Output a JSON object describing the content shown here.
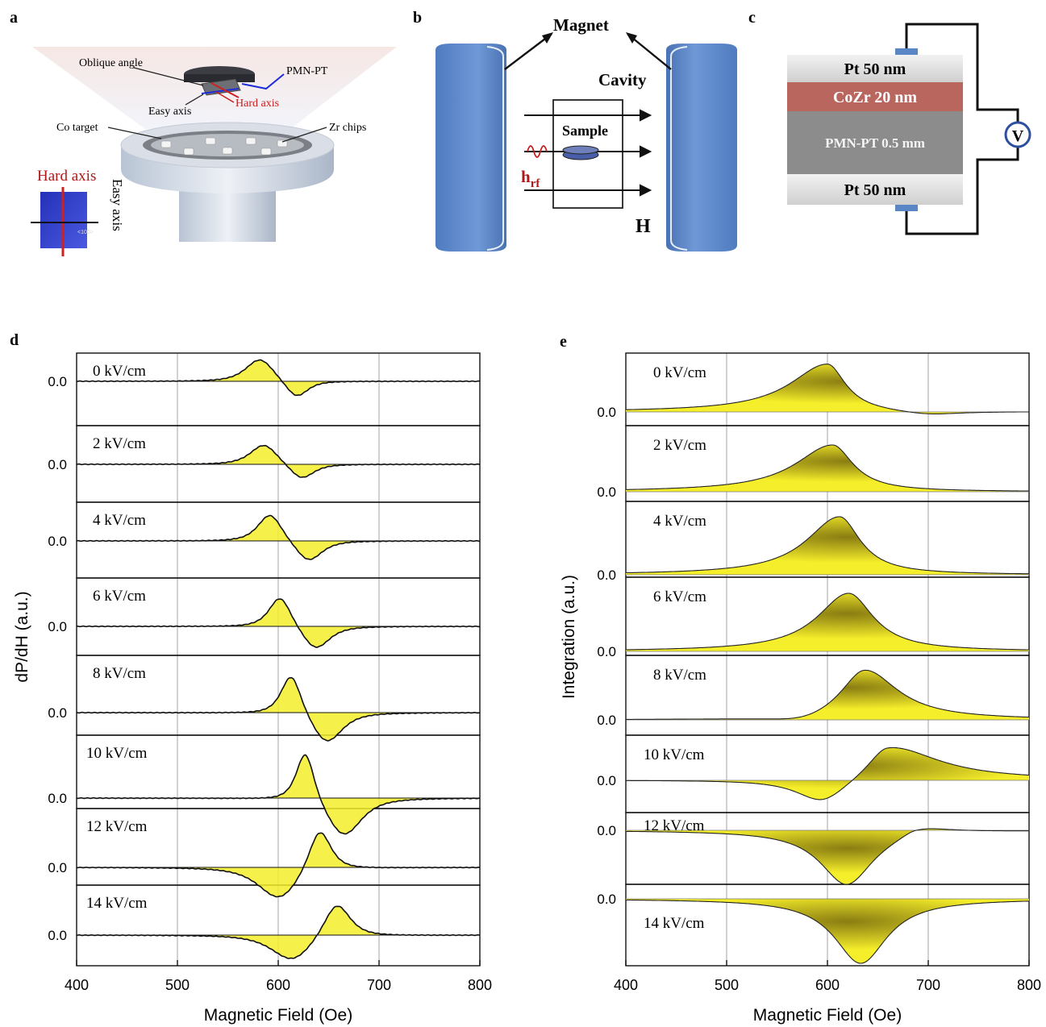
{
  "panel_labels": {
    "a": "a",
    "b": "b",
    "c": "c",
    "d": "d",
    "e": "e"
  },
  "panel_a": {
    "oblique_angle": "Oblique angle",
    "pmn_pt": "PMN-PT",
    "easy_axis": "Easy axis",
    "hard_axis": "Hard axis",
    "co_target": "Co target",
    "zr_chips": "Zr chips",
    "inset_hard_axis": "Hard axis",
    "inset_easy_axis": "Easy axis",
    "inset_direction": "<100>"
  },
  "panel_b": {
    "magnet": "Magnet",
    "cavity": "Cavity",
    "sample": "Sample",
    "h_rf": "h",
    "h_rf_sub": "rf",
    "h_field": "H"
  },
  "panel_c": {
    "layers": [
      "Pt 50 nm",
      "CoZr 20 nm",
      "PMN-PT 0.5 mm",
      "Pt 50 nm"
    ],
    "voltmeter": "V"
  },
  "colors": {
    "fill_yellow": "#f5ee2a",
    "fill_dark": "#8a7d12",
    "pt_layer": "#dcdcdc",
    "cozr_layer": "#b8665e",
    "pmnpt_layer": "#8c8c8c",
    "magnet_blue": "#5b86c6",
    "wire_blue": "#5b86c6"
  },
  "chart_data": [
    {
      "type": "area",
      "panel": "d",
      "xlabel": "Magnetic Field (Oe)",
      "ylabel": "dP/dH (a.u.)",
      "xlim": [
        400,
        800
      ],
      "xticks": [
        400,
        500,
        600,
        700,
        800
      ],
      "ytick_label": "0.0",
      "grid": "vertical lines at 500, 600, 700",
      "series": [
        {
          "name": "0 kV/cm",
          "field": 0,
          "h0": 600,
          "pos_peak_x": 582,
          "neg_peak_x": 618
        },
        {
          "name": "2 kV/cm",
          "field": 2,
          "h0": 604,
          "pos_peak_x": 586,
          "neg_peak_x": 623
        },
        {
          "name": "4 kV/cm",
          "field": 4,
          "h0": 610,
          "pos_peak_x": 592,
          "neg_peak_x": 630
        },
        {
          "name": "6 kV/cm",
          "field": 6,
          "h0": 619,
          "pos_peak_x": 602,
          "neg_peak_x": 637
        },
        {
          "name": "8 kV/cm",
          "field": 8,
          "h0": 630,
          "pos_peak_x": 613,
          "neg_peak_x": 648
        },
        {
          "name": "10 kV/cm",
          "field": 10,
          "h0": 640,
          "pos_peak_x": 627,
          "neg_peak_x": 665
        },
        {
          "name": "12 kV/cm",
          "field": 12,
          "h0": 621,
          "pos_peak_x": 641,
          "neg_peak_x": 601
        },
        {
          "name": "14 kV/cm",
          "field": 14,
          "h0": 633,
          "pos_peak_x": 658,
          "neg_peak_x": 614
        }
      ]
    },
    {
      "type": "area",
      "panel": "e",
      "xlabel": "Magnetic Field (Oe)",
      "ylabel": "Integration (a.u.)",
      "xlim": [
        400,
        800
      ],
      "xticks": [
        400,
        500,
        600,
        700,
        800
      ],
      "ytick_label": "0.0",
      "grid": "vertical lines at 500, 600, 700",
      "series": [
        {
          "name": "0 kV/cm",
          "field": 0,
          "peak_x": 600,
          "min_x": 700
        },
        {
          "name": "2 kV/cm",
          "field": 2,
          "peak_x": 605
        },
        {
          "name": "4 kV/cm",
          "field": 4,
          "peak_x": 612
        },
        {
          "name": "6 kV/cm",
          "field": 6,
          "peak_x": 621
        },
        {
          "name": "8 kV/cm",
          "field": 8,
          "peak_x": 637,
          "min_x": 576
        },
        {
          "name": "10 kV/cm",
          "field": 10,
          "peak_x": 660,
          "min_x": 595
        },
        {
          "name": "12 kV/cm",
          "field": 12,
          "peak_x": 688,
          "min_x": 619
        },
        {
          "name": "14 kV/cm",
          "field": 14,
          "min_x": 633
        }
      ]
    }
  ]
}
